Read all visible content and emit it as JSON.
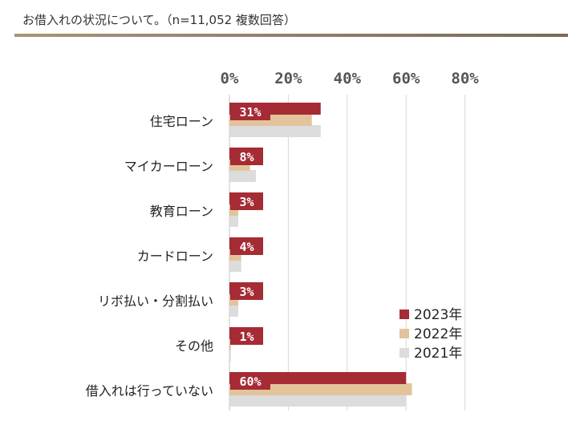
{
  "header": {
    "title": "お借入れの状況について。（n=11,052 複数回答）"
  },
  "colors": {
    "2023": "#a52b35",
    "2022": "#e3c49a",
    "2021": "#dcdcdc",
    "grid": "#d8d8d8",
    "axis_text": "#555555",
    "label_text": "#222222"
  },
  "chart_data": {
    "type": "bar",
    "orientation": "horizontal",
    "categories": [
      "住宅ローン",
      "マイカーローン",
      "教育ローン",
      "カードローン",
      "リボ払い・分割払い",
      "その他",
      "借入れは行っていない"
    ],
    "series": [
      {
        "name": "2023年",
        "values": [
          31,
          8,
          3,
          4,
          3,
          1,
          60
        ],
        "labels": [
          "31%",
          "8%",
          "3%",
          "4%",
          "3%",
          "1%",
          "60%"
        ]
      },
      {
        "name": "2022年",
        "values": [
          28,
          7,
          3,
          4,
          3,
          0.5,
          62
        ]
      },
      {
        "name": "2021年",
        "values": [
          31,
          9,
          3,
          4,
          3,
          0.5,
          60
        ]
      }
    ],
    "xticks": [
      "0%",
      "20%",
      "40%",
      "60%",
      "80%"
    ],
    "xlim": [
      0,
      80
    ],
    "grid": true,
    "legend": "right"
  }
}
